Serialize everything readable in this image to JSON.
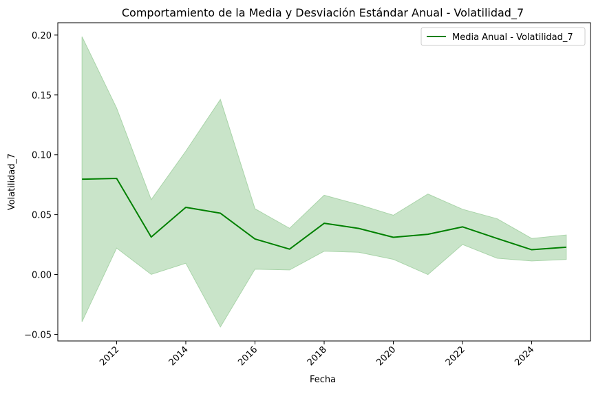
{
  "chart_data": {
    "type": "line",
    "title": "Comportamiento de la Media y Desviación Estándar Anual - Volatilidad_7",
    "xlabel": "Fecha",
    "ylabel": "Volatilidad_7",
    "x": [
      2011,
      2012,
      2013,
      2014,
      2015,
      2016,
      2017,
      2018,
      2019,
      2020,
      2021,
      2022,
      2023,
      2024,
      2025
    ],
    "series": [
      {
        "name": "Media Anual - Volatilidad_7",
        "values": [
          0.0796,
          0.0803,
          0.0313,
          0.0561,
          0.0512,
          0.0297,
          0.0212,
          0.0428,
          0.0385,
          0.0311,
          0.0336,
          0.0398,
          0.0301,
          0.0207,
          0.0228
        ],
        "upper": [
          0.1986,
          0.139,
          0.0625,
          0.103,
          0.1462,
          0.0549,
          0.0386,
          0.0662,
          0.0584,
          0.0495,
          0.0672,
          0.0545,
          0.0466,
          0.0301,
          0.033
        ],
        "lower": [
          -0.0394,
          0.0221,
          0.0001,
          0.0094,
          -0.0438,
          0.0045,
          0.0038,
          0.0195,
          0.0186,
          0.0127,
          0.0,
          0.0251,
          0.0136,
          0.0113,
          0.0126
        ],
        "color": "#008000",
        "band_color": "#c9e4c9"
      }
    ],
    "xticks": [
      "2012",
      "2014",
      "2016",
      "2018",
      "2020",
      "2022",
      "2024"
    ],
    "yticks": [
      "−0.05",
      "0.00",
      "0.05",
      "0.10",
      "0.15",
      "0.20"
    ],
    "xlim": [
      2010.3,
      2025.7
    ],
    "ylim": [
      -0.0555,
      0.2103
    ],
    "grid": false,
    "legend_position": "top-right"
  }
}
